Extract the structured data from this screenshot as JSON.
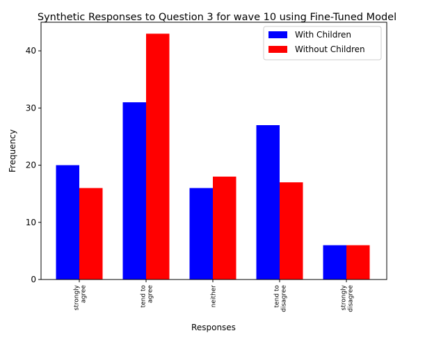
{
  "chart_data": {
    "type": "bar",
    "title": "Synthetic Responses to Question 3 for wave 10 using Fine-Tuned Model",
    "xlabel": "Responses",
    "ylabel": "Frequency",
    "categories": [
      [
        "strongly",
        "agree"
      ],
      [
        "tend to",
        "agree"
      ],
      [
        "neither"
      ],
      [
        "tend to",
        "disagree"
      ],
      [
        "strongly",
        "disagree"
      ]
    ],
    "series": [
      {
        "name": "With Children",
        "color": "#0000ff",
        "values": [
          20,
          31,
          16,
          27,
          6
        ]
      },
      {
        "name": "Without Children",
        "color": "#ff0000",
        "values": [
          16,
          43,
          18,
          17,
          6
        ]
      }
    ],
    "ylim": [
      0,
      45
    ],
    "yticks": [
      0,
      10,
      20,
      30,
      40
    ],
    "grid": false,
    "legend_position": "top-right"
  }
}
